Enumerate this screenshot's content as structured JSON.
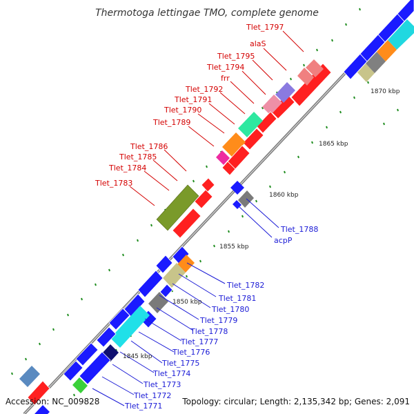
{
  "title": "Thermotoga lettingae TMO, complete genome",
  "footer": {
    "accession": "Accession: NC_009828",
    "info": "Topology: circular; Length: 2,135,342 bp; Genes: 2,091"
  },
  "ticks": [
    "1845 kbp",
    "1850 kbp",
    "1855 kbp",
    "1860 kbp",
    "1865 kbp",
    "1870 kbp"
  ],
  "labels_top": [
    "Tlet_1797",
    "alaS",
    "Tlet_1795",
    "Tlet_1794",
    "frr",
    "Tlet_1792",
    "Tlet_1791",
    "Tlet_1790",
    "Tlet_1789",
    "Tlet_1786",
    "Tlet_1785",
    "Tlet_1784",
    "Tlet_1783"
  ],
  "labels_bottom": [
    "Tlet_1788",
    "acpP",
    "Tlet_1782",
    "Tlet_1781",
    "Tlet_1780",
    "Tlet_1779",
    "Tlet_1778",
    "Tlet_1777",
    "Tlet_1776",
    "Tlet_1775",
    "Tlet_1774",
    "Tlet_1773",
    "Tlet_1772",
    "Tlet_1771"
  ],
  "colors": {
    "forward": "#ff1a1a",
    "reverse": "#1a1aff",
    "axis": "#888888",
    "tick_dash": "#1e8c1e",
    "label_red": "#d40000",
    "label_blue": "#1a1ad6"
  }
}
